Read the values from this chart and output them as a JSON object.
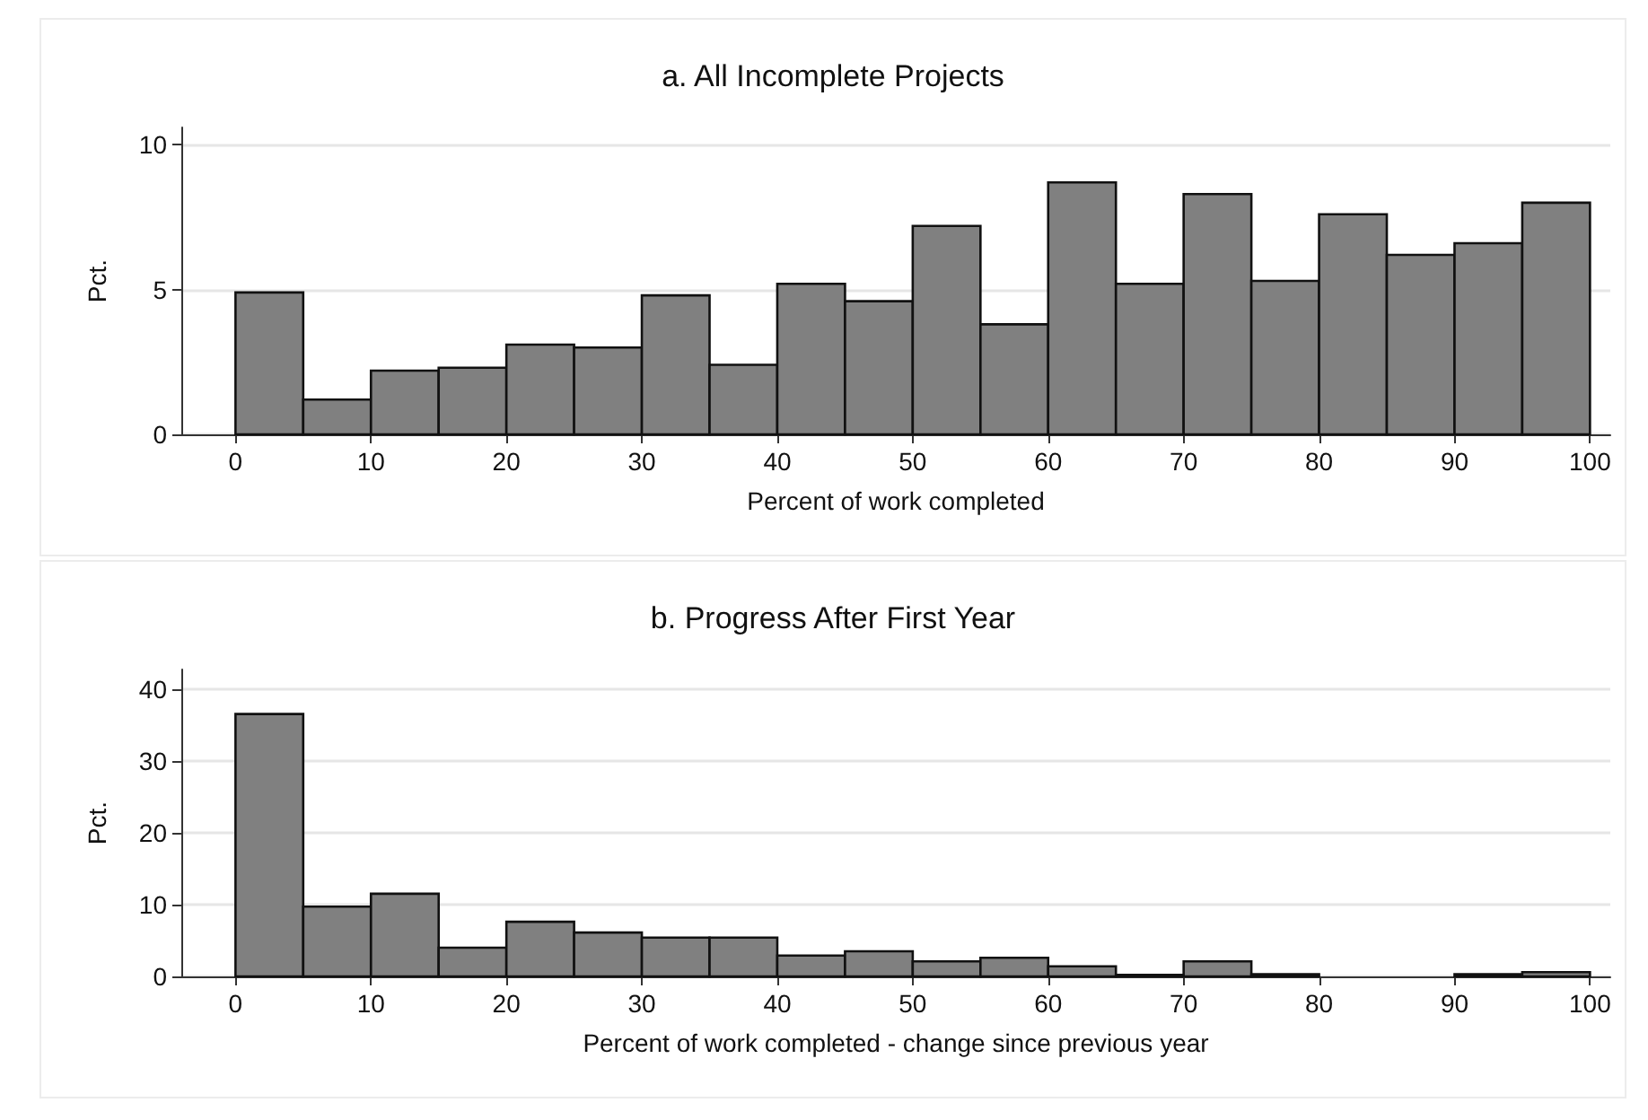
{
  "chart_data": [
    {
      "type": "histogram",
      "title": "a. All Incomplete Projects",
      "xlabel": "Percent of work completed",
      "ylabel": "Pct.",
      "bins": [
        0,
        5,
        10,
        15,
        20,
        25,
        30,
        35,
        40,
        45,
        50,
        55,
        60,
        65,
        70,
        75,
        80,
        85,
        90,
        95,
        100
      ],
      "values": [
        4.9,
        1.2,
        2.2,
        2.3,
        3.1,
        3.0,
        4.8,
        2.4,
        5.2,
        4.6,
        7.2,
        3.8,
        8.7,
        5.2,
        8.3,
        5.3,
        7.6,
        6.2,
        6.6,
        8.0
      ],
      "color": "#808080",
      "xlim": [
        -4,
        101.5
      ],
      "xticks": [
        0,
        10,
        20,
        30,
        40,
        50,
        60,
        70,
        80,
        90,
        100
      ],
      "ylim": [
        0,
        10.6
      ],
      "yticks": [
        0,
        5,
        10
      ],
      "grid": "y"
    },
    {
      "type": "histogram",
      "title": "b. Progress After First Year",
      "xlabel": "Percent of work completed - change since previous year",
      "ylabel": "Pct.",
      "bins": [
        0,
        5,
        10,
        15,
        20,
        25,
        30,
        35,
        40,
        45,
        50,
        55,
        60,
        65,
        70,
        75,
        80,
        85,
        90,
        95,
        100
      ],
      "values": [
        36.5,
        9.7,
        11.5,
        4.0,
        7.6,
        6.1,
        5.4,
        5.4,
        2.9,
        3.5,
        2.1,
        2.6,
        1.4,
        0.2,
        2.1,
        0.3,
        0,
        0,
        0.3,
        0.6
      ],
      "color": "#808080",
      "xlim": [
        -4,
        101.5
      ],
      "xticks": [
        0,
        10,
        20,
        30,
        40,
        50,
        60,
        70,
        80,
        90,
        100
      ],
      "ylim": [
        0,
        42.7
      ],
      "yticks": [
        0,
        10,
        20,
        30,
        40
      ],
      "grid": "y"
    }
  ]
}
